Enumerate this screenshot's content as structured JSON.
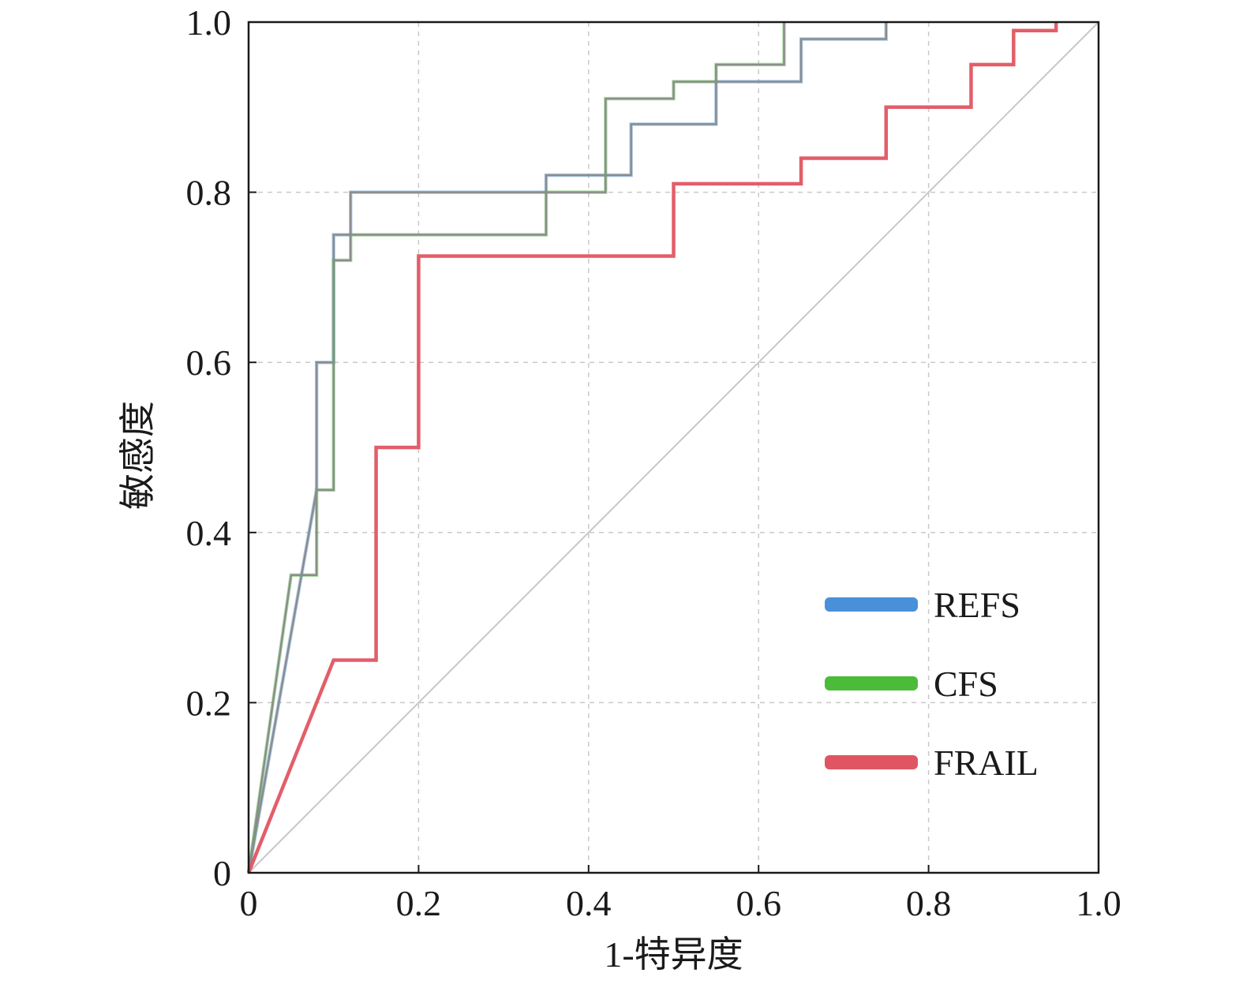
{
  "chart_data": {
    "type": "line",
    "title": "",
    "xlabel": "1-特异度",
    "ylabel": "敏感度",
    "xlim": [
      0,
      1
    ],
    "ylim": [
      0,
      1
    ],
    "xticks": [
      "0",
      "0.2",
      "0.4",
      "0.6",
      "0.8",
      "1.0"
    ],
    "yticks": [
      "0",
      "0.2",
      "0.4",
      "0.6",
      "0.8",
      "1.0"
    ],
    "tick_values": [
      0,
      0.2,
      0.4,
      0.6,
      0.8,
      1.0
    ],
    "grid": true,
    "legend_position": "bottom-right",
    "series": [
      {
        "name": "REFS",
        "color": "#4a90d9",
        "x": [
          0,
          0.08,
          0.08,
          0.1,
          0.1,
          0.12,
          0.12,
          0.35,
          0.35,
          0.45,
          0.45,
          0.55,
          0.55,
          0.65,
          0.65,
          0.75,
          0.75
        ],
        "y": [
          0,
          0.45,
          0.6,
          0.6,
          0.75,
          0.75,
          0.8,
          0.8,
          0.82,
          0.82,
          0.88,
          0.88,
          0.93,
          0.93,
          0.98,
          0.98,
          1.0
        ]
      },
      {
        "name": "CFS",
        "color": "#4cbb3a",
        "x": [
          0,
          0.05,
          0.08,
          0.08,
          0.1,
          0.1,
          0.12,
          0.12,
          0.35,
          0.35,
          0.42,
          0.42,
          0.5,
          0.5,
          0.55,
          0.55,
          0.63,
          0.63
        ],
        "y": [
          0,
          0.35,
          0.35,
          0.45,
          0.45,
          0.72,
          0.72,
          0.75,
          0.75,
          0.8,
          0.8,
          0.91,
          0.91,
          0.93,
          0.93,
          0.95,
          0.95,
          1.0
        ]
      },
      {
        "name": "FRAIL",
        "color": "#e05562",
        "x": [
          0,
          0.1,
          0.15,
          0.15,
          0.2,
          0.2,
          0.5,
          0.5,
          0.65,
          0.65,
          0.75,
          0.75,
          0.85,
          0.85,
          0.9,
          0.9,
          0.95,
          0.95
        ],
        "y": [
          0,
          0.25,
          0.25,
          0.5,
          0.5,
          0.725,
          0.725,
          0.81,
          0.81,
          0.84,
          0.84,
          0.9,
          0.9,
          0.95,
          0.95,
          0.99,
          0.99,
          1.0
        ]
      }
    ],
    "reference_line": {
      "x": [
        0,
        1
      ],
      "y": [
        0,
        1
      ],
      "color": "#c8c8c8"
    }
  }
}
